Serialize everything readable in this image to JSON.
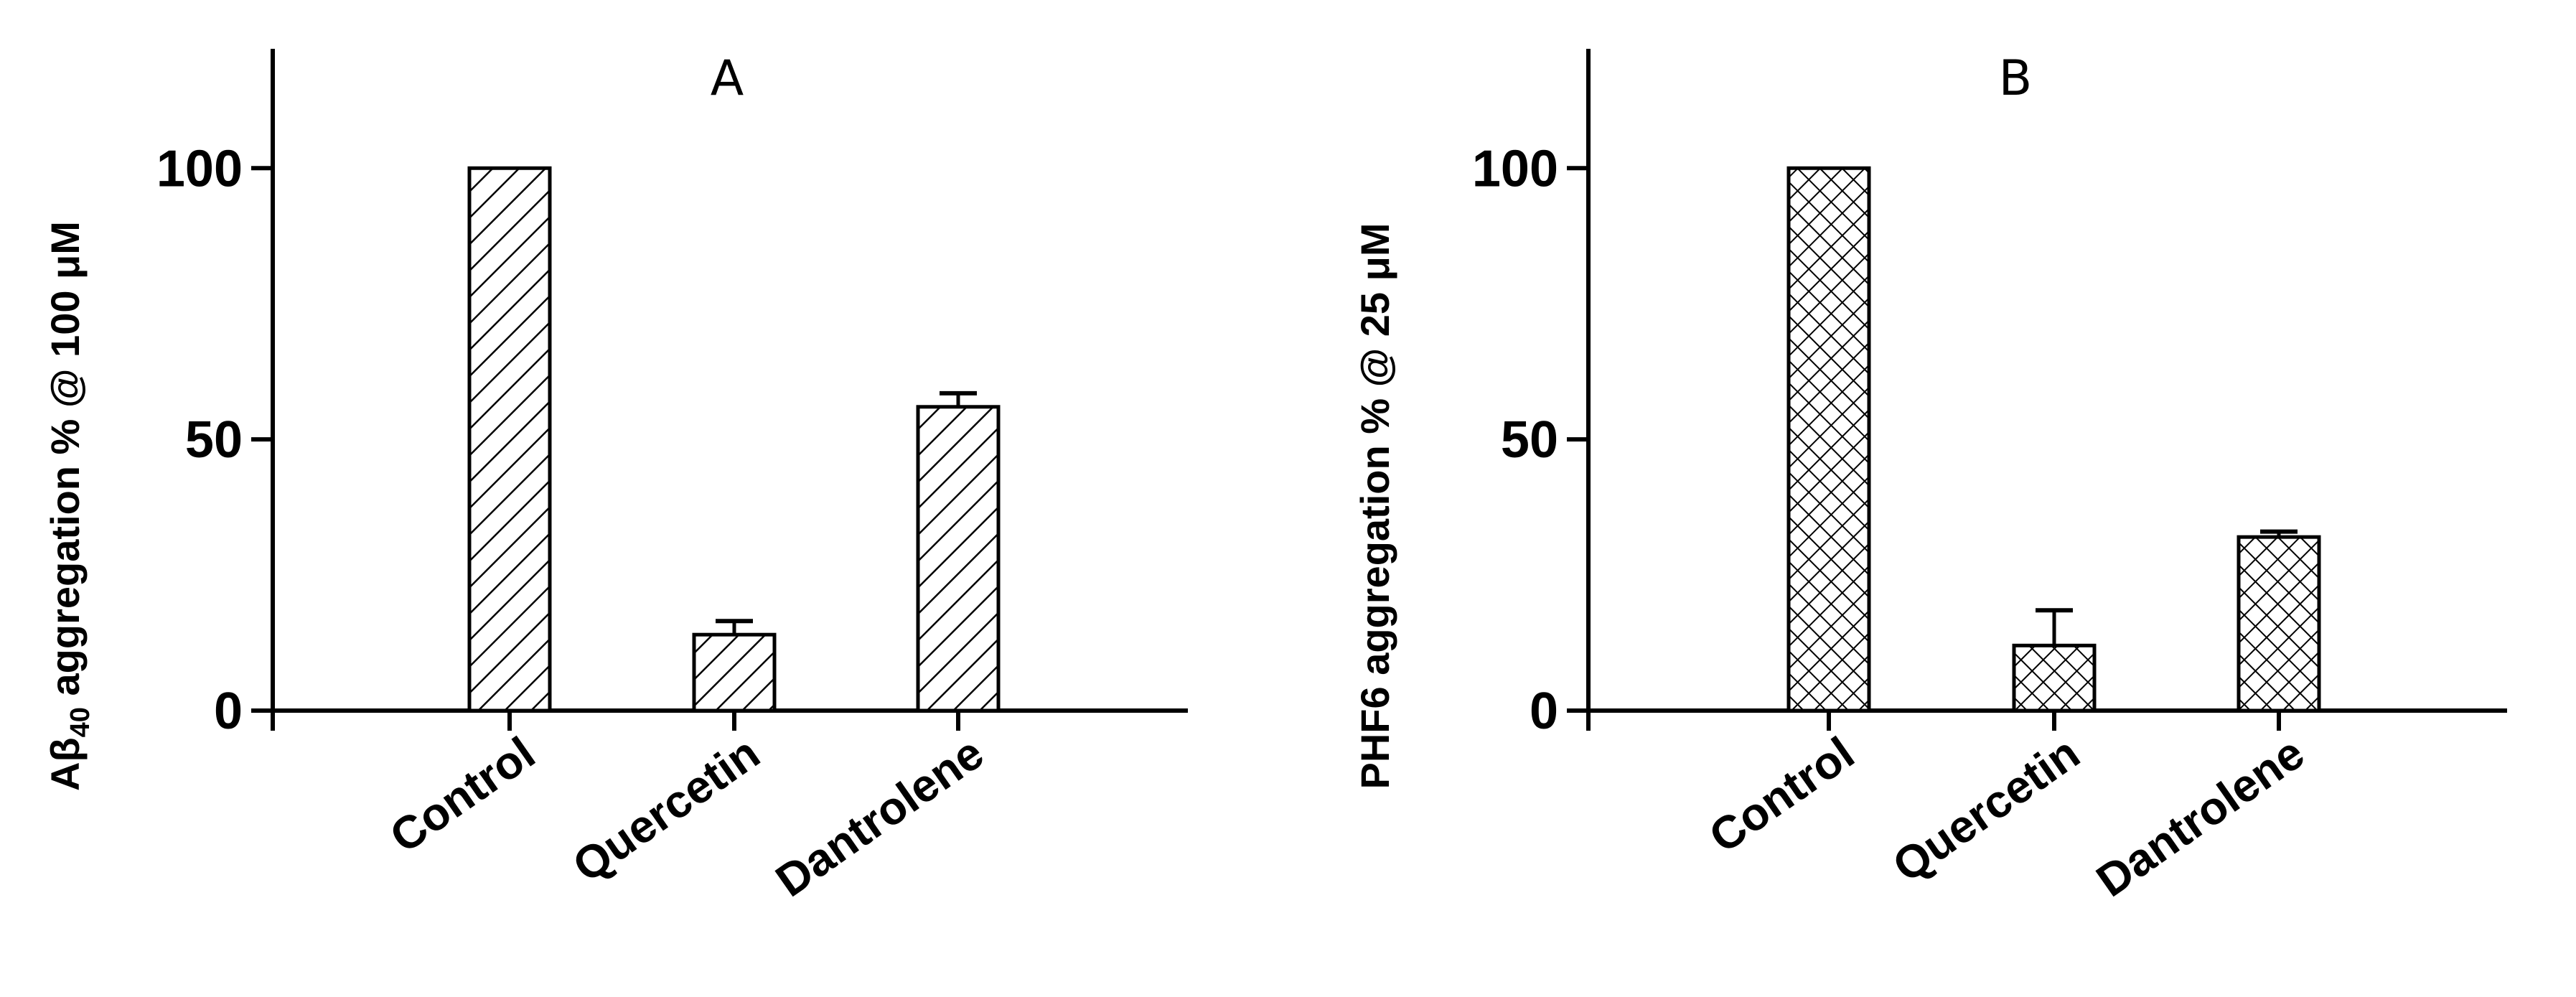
{
  "chart_data": [
    {
      "type": "bar",
      "title": "A",
      "ylabel": "Aβ₄₀ aggregation % @ 100 μM",
      "ylabel_parts": {
        "prefix": "Aβ",
        "subscript": "40",
        "suffix": " aggregation % @ 100 μM"
      },
      "categories": [
        "Control",
        "Quercetin",
        "Dantrolene"
      ],
      "values": [
        100,
        14,
        56
      ],
      "errors": [
        0,
        2.5,
        2.5
      ],
      "yticks": [
        0,
        50,
        100
      ],
      "ylim": [
        0,
        122
      ],
      "pattern": "diagonal-hatch",
      "grid": false
    },
    {
      "type": "bar",
      "title": "B",
      "ylabel": "PHF6 aggregation % @ 25 μM",
      "categories": [
        "Control",
        "Quercetin",
        "Dantrolene"
      ],
      "values": [
        100,
        12,
        32
      ],
      "errors": [
        0,
        6.5,
        1
      ],
      "yticks": [
        0,
        50,
        100
      ],
      "ylim": [
        0,
        122
      ],
      "pattern": "crosshatch",
      "grid": false
    }
  ]
}
